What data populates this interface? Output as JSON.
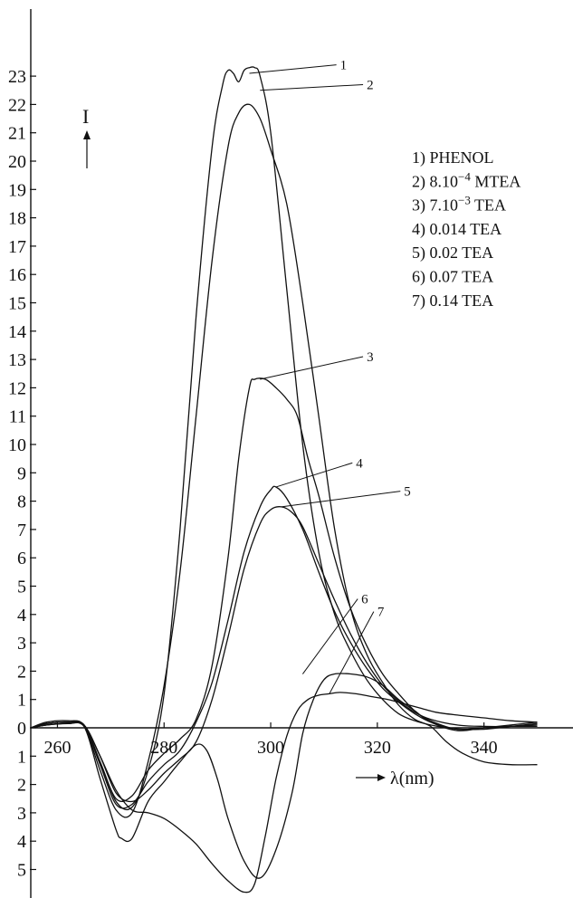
{
  "chart_data": {
    "type": "line",
    "xlabel": "λ(nm)",
    "ylabel": "I",
    "xlim": [
      255,
      350
    ],
    "ylim": [
      -5.5,
      23.3
    ],
    "x_ticks": [
      {
        "v": 260,
        "label": "260"
      },
      {
        "v": 280,
        "label": "280"
      },
      {
        "v": 300,
        "label": "300"
      },
      {
        "v": 320,
        "label": "320"
      },
      {
        "v": 340,
        "label": "340"
      }
    ],
    "y_ticks": [
      {
        "v": -5,
        "label": "5"
      },
      {
        "v": -4,
        "label": "4"
      },
      {
        "v": -3,
        "label": "3"
      },
      {
        "v": -2,
        "label": "2"
      },
      {
        "v": -1,
        "label": "1"
      },
      {
        "v": 0,
        "label": "0"
      },
      {
        "v": 1,
        "label": "1"
      },
      {
        "v": 2,
        "label": "2"
      },
      {
        "v": 3,
        "label": "3"
      },
      {
        "v": 4,
        "label": "4"
      },
      {
        "v": 5,
        "label": "5"
      },
      {
        "v": 6,
        "label": "6"
      },
      {
        "v": 7,
        "label": "7"
      },
      {
        "v": 8,
        "label": "8"
      },
      {
        "v": 9,
        "label": "9"
      },
      {
        "v": 10,
        "label": "10"
      },
      {
        "v": 11,
        "label": "11"
      },
      {
        "v": 12,
        "label": "12"
      },
      {
        "v": 13,
        "label": "13"
      },
      {
        "v": 14,
        "label": "14"
      },
      {
        "v": 15,
        "label": "15"
      },
      {
        "v": 16,
        "label": "16"
      },
      {
        "v": 17,
        "label": "17"
      },
      {
        "v": 18,
        "label": "18"
      },
      {
        "v": 19,
        "label": "19"
      },
      {
        "v": 20,
        "label": "20"
      },
      {
        "v": 21,
        "label": "21"
      },
      {
        "v": 22,
        "label": "22"
      },
      {
        "v": 23,
        "label": "23"
      }
    ],
    "legend": [
      {
        "num": "1) ",
        "name": "PHENOL"
      },
      {
        "num": "2) ",
        "name": "8.10",
        "exp": "−4",
        "suffix": " MTEA"
      },
      {
        "num": "3) ",
        "name": "7.10",
        "exp": "−3",
        "suffix": " TEA"
      },
      {
        "num": "4) ",
        "name": "0.014 TEA"
      },
      {
        "num": "5) ",
        "name": "0.02 TEA"
      },
      {
        "num": "6) ",
        "name": "0.07 TEA"
      },
      {
        "num": "7) ",
        "name": "0.14 TEA"
      }
    ],
    "legend_position": "top-right",
    "series": [
      {
        "label": "1",
        "anchor": [
          296,
          23.1
        ],
        "label_at": [
          313,
          23.4
        ],
        "x": [
          255,
          258,
          262,
          265,
          268,
          271,
          274,
          277,
          280,
          283,
          286,
          289,
          291,
          292,
          293,
          294,
          295,
          296,
          297,
          298,
          300,
          303,
          306,
          309,
          312,
          315,
          318,
          321,
          324,
          327,
          330,
          333,
          336,
          340,
          345,
          350
        ],
        "y": [
          0,
          0.1,
          0.15,
          0.1,
          -1.2,
          -2.6,
          -2.8,
          -1.5,
          1.2,
          7,
          14.5,
          20.5,
          22.7,
          23.2,
          23.1,
          22.8,
          23.2,
          23.3,
          23.3,
          23.0,
          21,
          15.5,
          10,
          6.2,
          4,
          2.7,
          1.7,
          1.0,
          0.5,
          0.25,
          0.1,
          0,
          -0.05,
          -0.05,
          0.05,
          0.15
        ]
      },
      {
        "label": "2",
        "anchor": [
          298,
          22.5
        ],
        "label_at": [
          318,
          22.7
        ],
        "x": [
          255,
          258,
          262,
          265,
          268,
          271,
          274,
          277,
          280,
          283,
          286,
          289,
          292,
          294,
          296,
          298,
          300,
          303,
          306,
          309,
          312,
          315,
          318,
          321,
          324,
          327,
          330,
          333,
          336,
          340,
          345,
          350
        ],
        "y": [
          0,
          0.15,
          0.2,
          0.05,
          -1.5,
          -2.9,
          -3.0,
          -1.2,
          1.5,
          5.5,
          11,
          16.5,
          20.5,
          21.7,
          22.0,
          21.5,
          20.4,
          18.5,
          15,
          11,
          7,
          4.2,
          2.6,
          1.6,
          0.8,
          0.3,
          0.05,
          -0.5,
          -0.9,
          -1.2,
          -1.3,
          -1.3
        ]
      },
      {
        "label": "3",
        "anchor": [
          298,
          12.3
        ],
        "label_at": [
          318,
          13.1
        ],
        "x": [
          255,
          258,
          262,
          265,
          268,
          271,
          274,
          277,
          280,
          283,
          286,
          289,
          292,
          294,
          296,
          297,
          299,
          301,
          303,
          305,
          307,
          309,
          312,
          315,
          318,
          321,
          324,
          327,
          330,
          335,
          340,
          345,
          350
        ],
        "y": [
          0,
          0.1,
          0.15,
          0.05,
          -1.2,
          -2.5,
          -2.4,
          -1.5,
          -0.9,
          -0.4,
          0.3,
          2.2,
          6,
          9.5,
          12.0,
          12.3,
          12.3,
          12.0,
          11.6,
          11,
          9.5,
          8.2,
          6,
          4.2,
          2.9,
          1.9,
          1.2,
          0.6,
          0.25,
          -0.05,
          0,
          0.05,
          0.1
        ]
      },
      {
        "label": "4",
        "anchor": [
          301,
          8.5
        ],
        "label_at": [
          316,
          9.35
        ],
        "x": [
          255,
          258,
          262,
          265,
          268,
          271,
          274,
          277,
          280,
          283,
          286,
          289,
          292,
          295,
          298,
          300,
          301,
          303,
          306,
          309,
          312,
          315,
          318,
          321,
          324,
          327,
          330,
          335,
          340,
          345,
          350
        ],
        "y": [
          0,
          0.1,
          0.15,
          0.05,
          -1.3,
          -2.7,
          -2.7,
          -1.9,
          -1.3,
          -0.8,
          0.2,
          1.6,
          3.8,
          6.2,
          7.8,
          8.4,
          8.5,
          8.1,
          7,
          5.5,
          4.1,
          3,
          2.1,
          1.4,
          0.9,
          0.5,
          0.2,
          -0.05,
          0,
          0.05,
          0.05
        ]
      },
      {
        "label": "5",
        "anchor": [
          302,
          7.8
        ],
        "label_at": [
          325,
          8.35
        ],
        "x": [
          255,
          258,
          262,
          265,
          268,
          271,
          274,
          277,
          280,
          283,
          286,
          289,
          292,
          295,
          298,
          300,
          302,
          304,
          306,
          309,
          312,
          315,
          318,
          321,
          324,
          327,
          330,
          335,
          340,
          345,
          350
        ],
        "y": [
          0,
          0.15,
          0.2,
          0.1,
          -1.0,
          -2.3,
          -2.6,
          -2.2,
          -1.6,
          -1.1,
          -0.5,
          1,
          3.2,
          5.6,
          7.2,
          7.7,
          7.8,
          7.6,
          7.1,
          5.8,
          4.5,
          3.3,
          2.3,
          1.5,
          0.95,
          0.55,
          0.3,
          0.1,
          0.05,
          0.05,
          0.1
        ]
      },
      {
        "label": "6",
        "anchor": [
          306,
          1.9
        ],
        "label_at": [
          317,
          4.55
        ],
        "x": [
          255,
          258,
          262,
          265,
          268,
          271,
          272,
          274,
          277,
          280,
          283,
          286,
          288,
          290,
          292,
          295,
          298,
          301,
          304,
          306,
          308,
          310,
          312,
          315,
          318,
          321,
          324,
          327,
          330,
          335,
          340,
          345,
          350
        ],
        "y": [
          0,
          0.15,
          0.2,
          0.05,
          -1.8,
          -3.6,
          -3.9,
          -3.9,
          -2.6,
          -1.9,
          -1.2,
          -0.6,
          -0.8,
          -1.8,
          -3.2,
          -4.7,
          -5.3,
          -4.3,
          -2.3,
          -0.2,
          1.0,
          1.7,
          1.9,
          1.9,
          1.8,
          1.5,
          1.0,
          0.6,
          0.2,
          -0.1,
          0,
          0.1,
          0.2
        ]
      },
      {
        "label": "7",
        "anchor": [
          311,
          1.2
        ],
        "label_at": [
          320,
          4.1
        ],
        "x": [
          255,
          258,
          262,
          265,
          268,
          271,
          274,
          277,
          280,
          283,
          286,
          289,
          292,
          295,
          297,
          299,
          301,
          303,
          305,
          307,
          309,
          311,
          313,
          316,
          319,
          322,
          325,
          328,
          331,
          335,
          340,
          345,
          350
        ],
        "y": [
          0,
          0.2,
          0.25,
          0.1,
          -1.0,
          -2.2,
          -2.9,
          -3.0,
          -3.2,
          -3.6,
          -4.1,
          -4.8,
          -5.4,
          -5.8,
          -5.5,
          -3.8,
          -1.8,
          -0.3,
          0.6,
          1.0,
          1.15,
          1.2,
          1.25,
          1.2,
          1.1,
          1.0,
          0.85,
          0.7,
          0.55,
          0.45,
          0.35,
          0.25,
          0.2
        ]
      }
    ]
  }
}
